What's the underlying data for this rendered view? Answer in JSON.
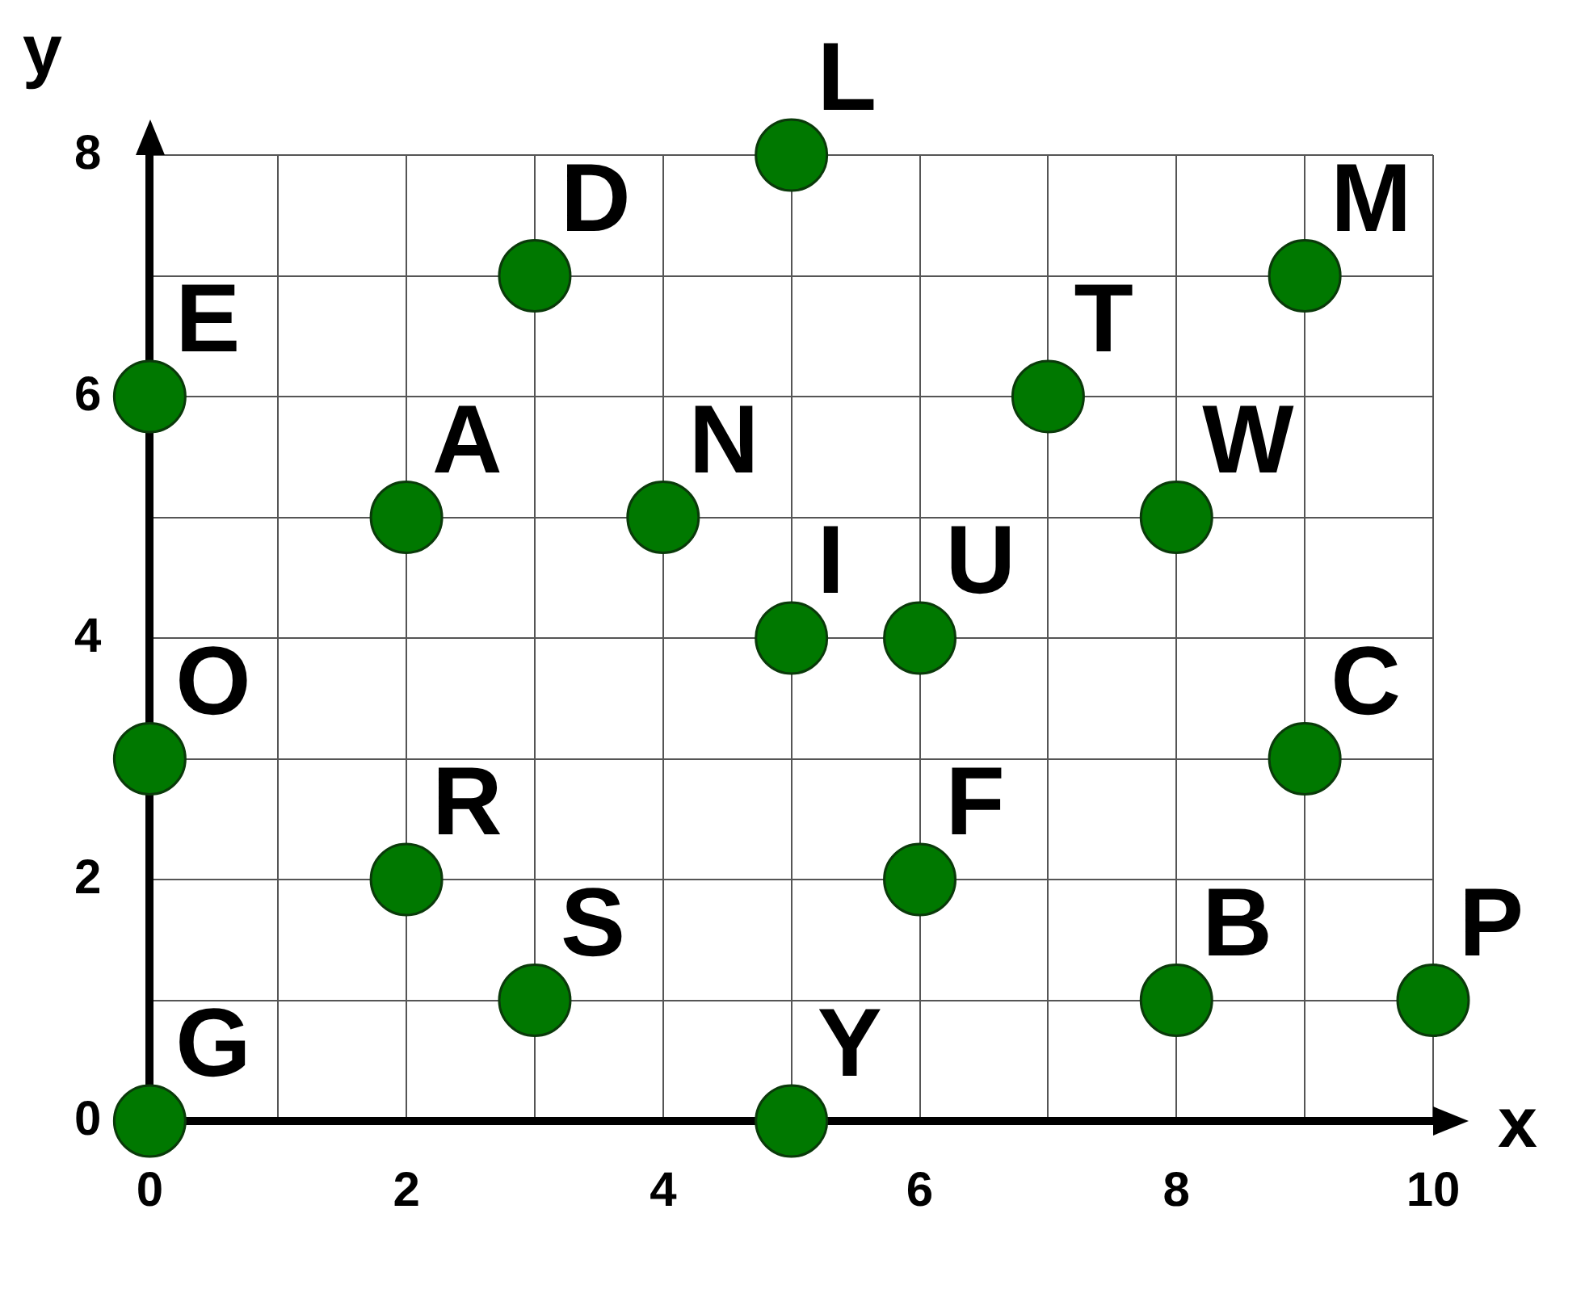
{
  "chart_data": {
    "type": "scatter",
    "xlabel": "x",
    "ylabel": "y",
    "x": [
      0,
      3,
      5,
      9,
      7,
      2,
      4,
      8,
      5,
      6,
      0,
      9,
      2,
      6,
      3,
      8,
      10,
      0,
      5
    ],
    "values": [
      6,
      7,
      8,
      7,
      6,
      5,
      5,
      5,
      4,
      4,
      3,
      3,
      2,
      2,
      1,
      1,
      1,
      0,
      0
    ],
    "color": "#007800",
    "marker": "circle",
    "xlim": [
      0,
      10
    ],
    "ylim": [
      0,
      8
    ],
    "xticks": [
      0,
      {
        "value": 1,
        "label": null
      },
      2,
      {
        "value": 3,
        "label": null
      },
      4,
      {
        "value": 5,
        "label": null
      },
      6,
      {
        "value": 7,
        "label": null
      },
      8,
      {
        "value": 9,
        "label": null
      },
      10
    ],
    "yticks": [
      0,
      {
        "value": 1,
        "label": null
      },
      2,
      {
        "value": 3,
        "label": null
      },
      4,
      {
        "value": 5,
        "label": null
      },
      6,
      {
        "value": 7,
        "label": null
      },
      8
    ],
    "grid": true,
    "annotations": [
      {
        "text": "E",
        "x": 0,
        "y": 6
      },
      {
        "text": "D",
        "x": 3,
        "y": 7
      },
      {
        "text": "L",
        "x": 5,
        "y": 8
      },
      {
        "text": "M",
        "x": 9,
        "y": 7
      },
      {
        "text": "T",
        "x": 7,
        "y": 6
      },
      {
        "text": "A",
        "x": 2,
        "y": 5
      },
      {
        "text": "N",
        "x": 4,
        "y": 5
      },
      {
        "text": "W",
        "x": 8,
        "y": 5
      },
      {
        "text": "I",
        "x": 5,
        "y": 4
      },
      {
        "text": "U",
        "x": 6,
        "y": 4
      },
      {
        "text": "O",
        "x": 0,
        "y": 3
      },
      {
        "text": "C",
        "x": 9,
        "y": 3
      },
      {
        "text": "R",
        "x": 2,
        "y": 2
      },
      {
        "text": "F",
        "x": 6,
        "y": 2
      },
      {
        "text": "S",
        "x": 3,
        "y": 1
      },
      {
        "text": "B",
        "x": 8,
        "y": 1
      },
      {
        "text": "P",
        "x": 10,
        "y": 1
      },
      {
        "text": "G",
        "x": 0,
        "y": 0
      },
      {
        "text": "Y",
        "x": 5,
        "y": 0
      }
    ]
  }
}
